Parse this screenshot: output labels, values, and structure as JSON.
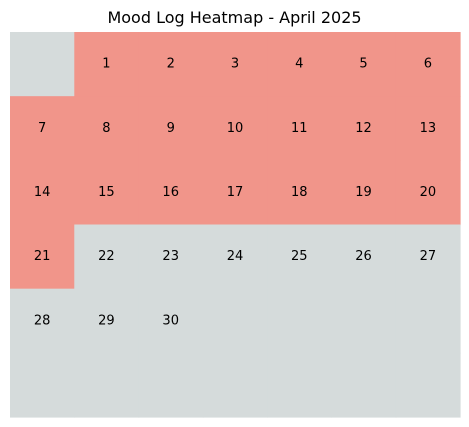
{
  "chart_data": {
    "type": "heatmap",
    "title": "Mood Log Heatmap - April 2025",
    "rows": 6,
    "cols": 7,
    "grid": false,
    "legend": "none",
    "colors": {
      "logged": "#f1958a",
      "empty": "#d5dbdb"
    },
    "cells": [
      {
        "row": 0,
        "col": 0,
        "label": "",
        "logged": false
      },
      {
        "row": 0,
        "col": 1,
        "label": "1",
        "logged": true
      },
      {
        "row": 0,
        "col": 2,
        "label": "2",
        "logged": true
      },
      {
        "row": 0,
        "col": 3,
        "label": "3",
        "logged": true
      },
      {
        "row": 0,
        "col": 4,
        "label": "4",
        "logged": true
      },
      {
        "row": 0,
        "col": 5,
        "label": "5",
        "logged": true
      },
      {
        "row": 0,
        "col": 6,
        "label": "6",
        "logged": true
      },
      {
        "row": 1,
        "col": 0,
        "label": "7",
        "logged": true
      },
      {
        "row": 1,
        "col": 1,
        "label": "8",
        "logged": true
      },
      {
        "row": 1,
        "col": 2,
        "label": "9",
        "logged": true
      },
      {
        "row": 1,
        "col": 3,
        "label": "10",
        "logged": true
      },
      {
        "row": 1,
        "col": 4,
        "label": "11",
        "logged": true
      },
      {
        "row": 1,
        "col": 5,
        "label": "12",
        "logged": true
      },
      {
        "row": 1,
        "col": 6,
        "label": "13",
        "logged": true
      },
      {
        "row": 2,
        "col": 0,
        "label": "14",
        "logged": true
      },
      {
        "row": 2,
        "col": 1,
        "label": "15",
        "logged": true
      },
      {
        "row": 2,
        "col": 2,
        "label": "16",
        "logged": true
      },
      {
        "row": 2,
        "col": 3,
        "label": "17",
        "logged": true
      },
      {
        "row": 2,
        "col": 4,
        "label": "18",
        "logged": true
      },
      {
        "row": 2,
        "col": 5,
        "label": "19",
        "logged": true
      },
      {
        "row": 2,
        "col": 6,
        "label": "20",
        "logged": true
      },
      {
        "row": 3,
        "col": 0,
        "label": "21",
        "logged": true
      },
      {
        "row": 3,
        "col": 1,
        "label": "22",
        "logged": false
      },
      {
        "row": 3,
        "col": 2,
        "label": "23",
        "logged": false
      },
      {
        "row": 3,
        "col": 3,
        "label": "24",
        "logged": false
      },
      {
        "row": 3,
        "col": 4,
        "label": "25",
        "logged": false
      },
      {
        "row": 3,
        "col": 5,
        "label": "26",
        "logged": false
      },
      {
        "row": 3,
        "col": 6,
        "label": "27",
        "logged": false
      },
      {
        "row": 4,
        "col": 0,
        "label": "28",
        "logged": false
      },
      {
        "row": 4,
        "col": 1,
        "label": "29",
        "logged": false
      },
      {
        "row": 4,
        "col": 2,
        "label": "30",
        "logged": false
      },
      {
        "row": 4,
        "col": 3,
        "label": "",
        "logged": false
      },
      {
        "row": 4,
        "col": 4,
        "label": "",
        "logged": false
      },
      {
        "row": 4,
        "col": 5,
        "label": "",
        "logged": false
      },
      {
        "row": 4,
        "col": 6,
        "label": "",
        "logged": false
      },
      {
        "row": 5,
        "col": 0,
        "label": "",
        "logged": false
      },
      {
        "row": 5,
        "col": 1,
        "label": "",
        "logged": false
      },
      {
        "row": 5,
        "col": 2,
        "label": "",
        "logged": false
      },
      {
        "row": 5,
        "col": 3,
        "label": "",
        "logged": false
      },
      {
        "row": 5,
        "col": 4,
        "label": "",
        "logged": false
      },
      {
        "row": 5,
        "col": 5,
        "label": "",
        "logged": false
      },
      {
        "row": 5,
        "col": 6,
        "label": "",
        "logged": false
      }
    ]
  }
}
